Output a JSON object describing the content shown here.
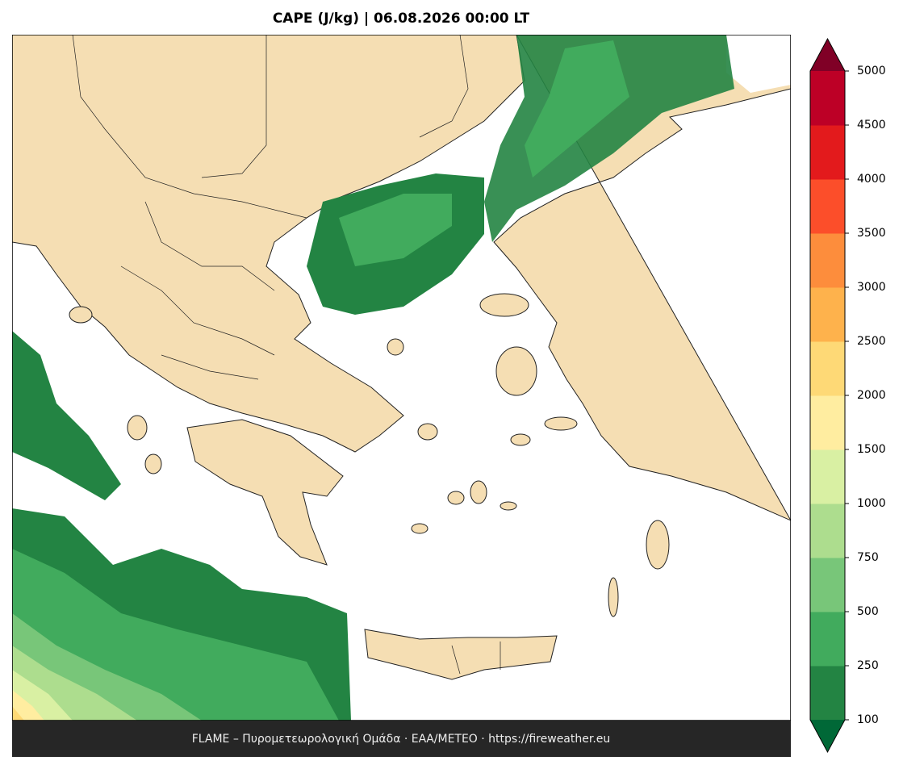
{
  "title": "CAPE (J/kg)  |  06.08.2026 00:00 LT",
  "colorbar": {
    "levels": [
      100,
      250,
      500,
      750,
      1000,
      1500,
      2000,
      2500,
      3000,
      3500,
      4000,
      4500,
      5000
    ],
    "colors": [
      "#238443",
      "#41ab5d",
      "#78c679",
      "#addd8e",
      "#d9f0a3",
      "#ffeda0",
      "#fed976",
      "#feb24c",
      "#fd8d3c",
      "#fc4e2a",
      "#e31a1c",
      "#bd0026"
    ],
    "under_color": "#006837",
    "over_color": "#800026"
  },
  "footer": "FLAME – Πυρομετεωρολογική Ομάδα · ΕΑΑ/METEO · https://fireweather.eu"
}
